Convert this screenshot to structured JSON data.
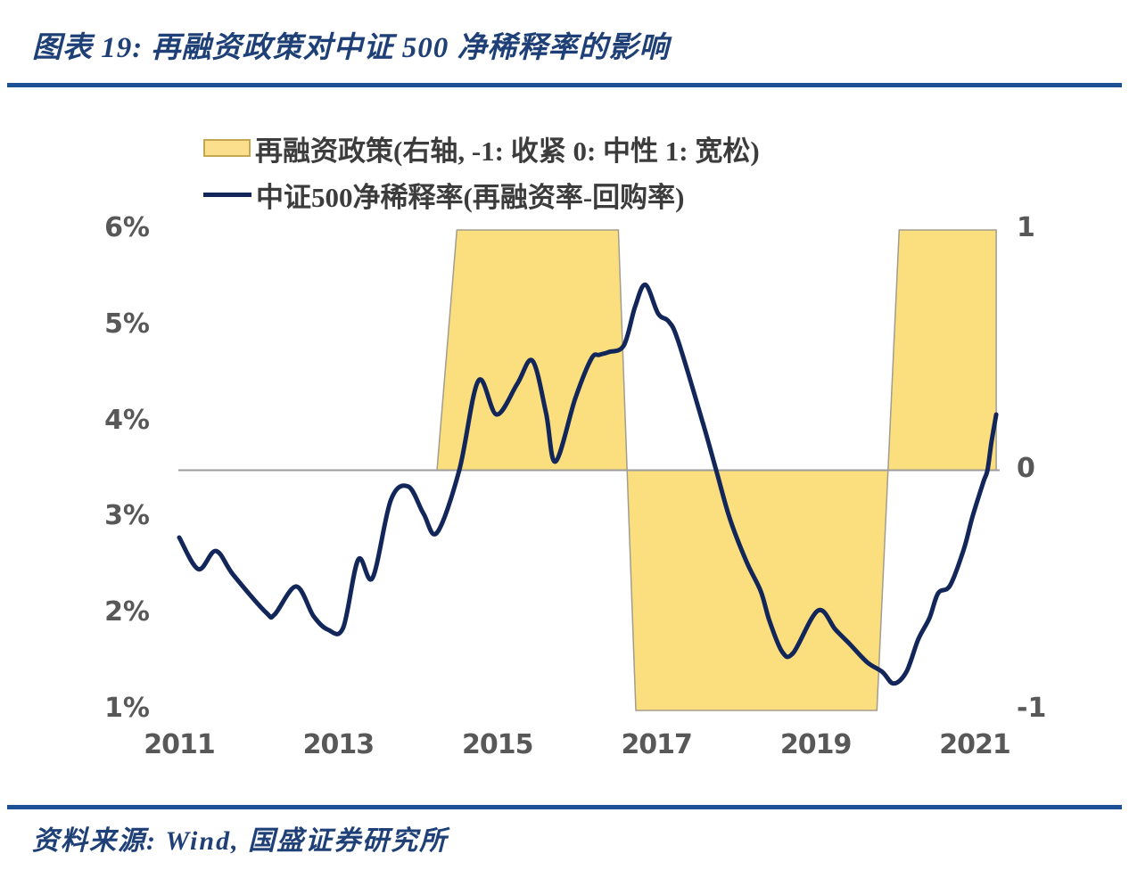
{
  "figure": {
    "title": "图表 19:  再融资政策对中证 500 净稀释率的影响",
    "source": "资料来源: Wind, 国盛证券研究所"
  },
  "legend": [
    {
      "swatch": "area-swatch",
      "label": "再融资政策(右轴, -1: 收紧  0: 中性  1: 宽松)"
    },
    {
      "swatch": "line-swatch",
      "label": "中证500净稀释率(再融资率-回购率)"
    }
  ],
  "colors": {
    "policy_fill": "#fbde7e",
    "policy_border": "#a39d8e",
    "dilution_line": "#12265a",
    "zero_line": "#9c9c9c",
    "tick_text": "#585858",
    "accent_blue": "#1c5295"
  },
  "chart_data": {
    "type": "combo",
    "title": "再融资政策对中证500净稀释率的影响",
    "grid": "off",
    "legend_position": "top",
    "left_axis": {
      "unit": "percent",
      "min": 1,
      "max": 6,
      "ticks": [
        {
          "label": "6%",
          "value": 6
        },
        {
          "label": "5%",
          "value": 5
        },
        {
          "label": "4%",
          "value": 4
        },
        {
          "label": "3%",
          "value": 3
        },
        {
          "label": "2%",
          "value": 2
        },
        {
          "label": "1%",
          "value": 1
        }
      ]
    },
    "right_axis": {
      "unit": "policy stance (-1 收紧, 0 中性, 1 宽松)",
      "min": -1,
      "max": 1,
      "ticks": [
        {
          "label": "1",
          "value": 1
        },
        {
          "label": "0",
          "value": 0
        },
        {
          "label": "-1",
          "value": -1
        }
      ]
    },
    "x_axis": {
      "min": 2011,
      "max": 2021.3,
      "ticks": [
        {
          "label": "2011",
          "value": 2011
        },
        {
          "label": "2013",
          "value": 2013
        },
        {
          "label": "2015",
          "value": 2015
        },
        {
          "label": "2017",
          "value": 2017
        },
        {
          "label": "2019",
          "value": 2019
        },
        {
          "label": "2021",
          "value": 2021
        }
      ]
    },
    "series": [
      {
        "name": "再融资政策",
        "type": "area",
        "axis": "right",
        "policy_periods": [
          {
            "from": 2014.3,
            "to": 2016.6,
            "value": 1,
            "meaning": "宽松"
          },
          {
            "from": 2016.7,
            "to": 2019.8,
            "value": -1,
            "meaning": "收紧"
          },
          {
            "from": 2020.0,
            "to": 2021.3,
            "value": 1,
            "meaning": "宽松"
          }
        ],
        "points": [
          [
            2011.0,
            0
          ],
          [
            2014.24,
            0
          ],
          [
            2014.49,
            1
          ],
          [
            2016.52,
            1
          ],
          [
            2016.74,
            -1
          ],
          [
            2019.77,
            -1
          ],
          [
            2020.05,
            1
          ],
          [
            2021.27,
            1
          ]
        ]
      },
      {
        "name": "中证500净稀释率",
        "type": "line",
        "axis": "left",
        "points": [
          [
            2011.0,
            2.8
          ],
          [
            2011.24,
            2.47
          ],
          [
            2011.46,
            2.66
          ],
          [
            2011.68,
            2.41
          ],
          [
            2012.09,
            2.02
          ],
          [
            2012.2,
            2.0
          ],
          [
            2012.47,
            2.29
          ],
          [
            2012.69,
            1.98
          ],
          [
            2012.87,
            1.84
          ],
          [
            2013.06,
            1.86
          ],
          [
            2013.25,
            2.57
          ],
          [
            2013.43,
            2.38
          ],
          [
            2013.66,
            3.19
          ],
          [
            2013.88,
            3.33
          ],
          [
            2014.07,
            3.05
          ],
          [
            2014.24,
            2.85
          ],
          [
            2014.52,
            3.5
          ],
          [
            2014.76,
            4.43
          ],
          [
            2014.99,
            4.08
          ],
          [
            2015.25,
            4.4
          ],
          [
            2015.44,
            4.64
          ],
          [
            2015.61,
            4.1
          ],
          [
            2015.73,
            3.59
          ],
          [
            2015.98,
            4.25
          ],
          [
            2016.18,
            4.66
          ],
          [
            2016.28,
            4.7
          ],
          [
            2016.4,
            4.73
          ],
          [
            2016.59,
            4.8
          ],
          [
            2016.73,
            5.2
          ],
          [
            2016.86,
            5.43
          ],
          [
            2017.02,
            5.13
          ],
          [
            2017.15,
            5.05
          ],
          [
            2017.27,
            4.85
          ],
          [
            2017.58,
            4.0
          ],
          [
            2017.75,
            3.5
          ],
          [
            2017.92,
            3.0
          ],
          [
            2018.13,
            2.55
          ],
          [
            2018.31,
            2.24
          ],
          [
            2018.42,
            1.93
          ],
          [
            2018.58,
            1.61
          ],
          [
            2018.72,
            1.6
          ],
          [
            2019.03,
            2.04
          ],
          [
            2019.25,
            1.84
          ],
          [
            2019.43,
            1.69
          ],
          [
            2019.65,
            1.5
          ],
          [
            2019.84,
            1.4
          ],
          [
            2019.98,
            1.28
          ],
          [
            2020.14,
            1.4
          ],
          [
            2020.29,
            1.74
          ],
          [
            2020.43,
            1.96
          ],
          [
            2020.54,
            2.22
          ],
          [
            2020.69,
            2.3
          ],
          [
            2020.86,
            2.67
          ],
          [
            2020.97,
            3.01
          ],
          [
            2021.11,
            3.38
          ],
          [
            2021.16,
            3.5
          ],
          [
            2021.21,
            3.79
          ],
          [
            2021.27,
            4.08
          ]
        ]
      }
    ]
  }
}
